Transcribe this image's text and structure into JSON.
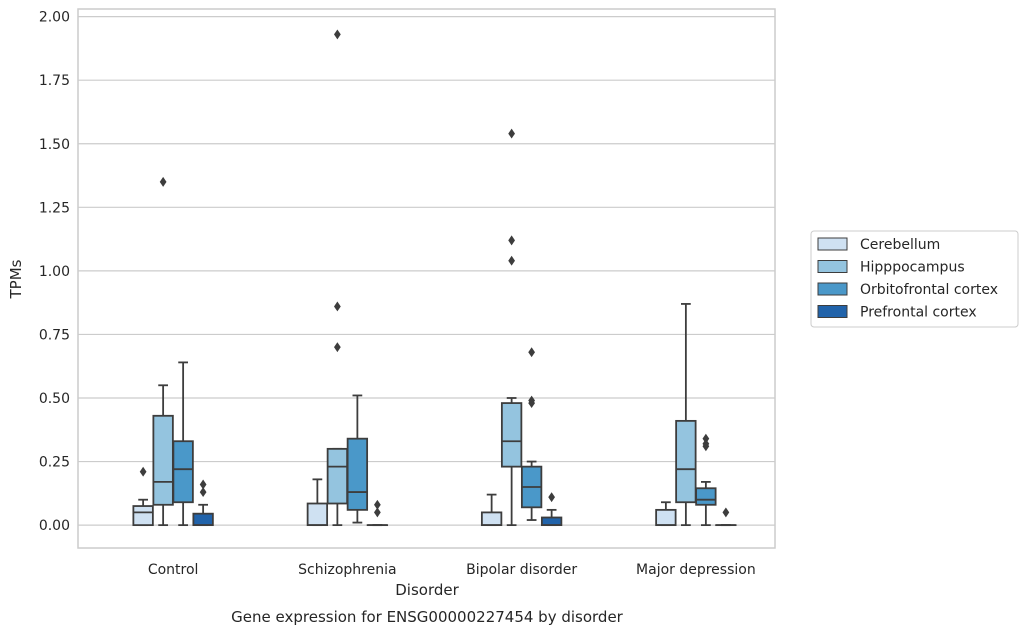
{
  "chart_data": {
    "type": "box",
    "title": "Gene expression for ENSG00000227454 by disorder",
    "xlabel": "Disorder",
    "ylabel": "TPMs",
    "ylim": [
      -0.09,
      2.03
    ],
    "yticks": [
      "0.00",
      "0.25",
      "0.50",
      "0.75",
      "1.00",
      "1.25",
      "1.50",
      "1.75",
      "2.00"
    ],
    "ytick_values": [
      0,
      0.25,
      0.5,
      0.75,
      1.0,
      1.25,
      1.5,
      1.75,
      2.0
    ],
    "grid": "horizontal",
    "legend_position": "right",
    "categories": [
      "Control",
      "Schizophrenia",
      "Bipolar disorder",
      "Major depression"
    ],
    "series": [
      {
        "name": "Cerebellum",
        "color": "#cfe1f2",
        "boxes": [
          {
            "whislo": 0.0,
            "q1": 0.0,
            "med": 0.05,
            "q3": 0.075,
            "whishi": 0.1,
            "fliers": [
              0.21
            ]
          },
          {
            "whislo": 0.0,
            "q1": 0.0,
            "med": 0.0,
            "q3": 0.085,
            "whishi": 0.18,
            "fliers": []
          },
          {
            "whislo": 0.0,
            "q1": 0.0,
            "med": 0.0,
            "q3": 0.05,
            "whishi": 0.12,
            "fliers": []
          },
          {
            "whislo": 0.0,
            "q1": 0.0,
            "med": 0.0,
            "q3": 0.06,
            "whishi": 0.09,
            "fliers": []
          }
        ]
      },
      {
        "name": "Hipppocampus",
        "color": "#94c4df",
        "boxes": [
          {
            "whislo": 0.0,
            "q1": 0.08,
            "med": 0.17,
            "q3": 0.43,
            "whishi": 0.55,
            "fliers": [
              1.35
            ]
          },
          {
            "whislo": 0.0,
            "q1": 0.085,
            "med": 0.23,
            "q3": 0.3,
            "whishi": 0.3,
            "fliers": [
              0.7,
              0.86,
              1.93
            ]
          },
          {
            "whislo": 0.0,
            "q1": 0.23,
            "med": 0.33,
            "q3": 0.48,
            "whishi": 0.5,
            "fliers": [
              1.04,
              1.12,
              1.54
            ]
          },
          {
            "whislo": 0.0,
            "q1": 0.09,
            "med": 0.22,
            "q3": 0.41,
            "whishi": 0.87,
            "fliers": []
          }
        ]
      },
      {
        "name": "Orbitofrontal cortex",
        "color": "#4a98c9",
        "boxes": [
          {
            "whislo": 0.0,
            "q1": 0.09,
            "med": 0.22,
            "q3": 0.33,
            "whishi": 0.64,
            "fliers": []
          },
          {
            "whislo": 0.01,
            "q1": 0.06,
            "med": 0.13,
            "q3": 0.34,
            "whishi": 0.51,
            "fliers": []
          },
          {
            "whislo": 0.02,
            "q1": 0.07,
            "med": 0.15,
            "q3": 0.23,
            "whishi": 0.25,
            "fliers": [
              0.48,
              0.49,
              0.68
            ]
          },
          {
            "whislo": 0.0,
            "q1": 0.08,
            "med": 0.1,
            "q3": 0.145,
            "whishi": 0.17,
            "fliers": [
              0.31,
              0.32,
              0.34
            ]
          }
        ]
      },
      {
        "name": "Prefrontal cortex",
        "color": "#2163aa",
        "boxes": [
          {
            "whislo": 0.0,
            "q1": 0.0,
            "med": 0.0,
            "q3": 0.045,
            "whishi": 0.08,
            "fliers": [
              0.13,
              0.16
            ]
          },
          {
            "whislo": 0.0,
            "q1": 0.0,
            "med": 0.0,
            "q3": 0.0,
            "whishi": 0.0,
            "fliers": [
              0.05,
              0.08
            ]
          },
          {
            "whislo": 0.0,
            "q1": 0.0,
            "med": 0.0,
            "q3": 0.03,
            "whishi": 0.06,
            "fliers": [
              0.11
            ]
          },
          {
            "whislo": 0.0,
            "q1": 0.0,
            "med": 0.0,
            "q3": 0.0,
            "whishi": 0.0,
            "fliers": [
              0.05
            ]
          }
        ]
      }
    ]
  }
}
